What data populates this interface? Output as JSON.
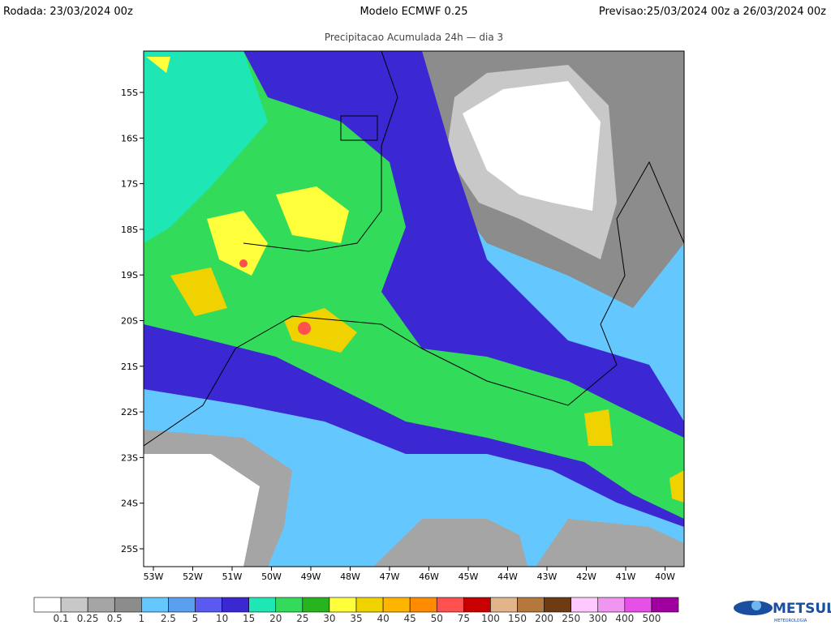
{
  "header": {
    "run": "Rodada: 23/03/2024 00z",
    "model": "Modelo ECMWF 0.25",
    "forecast": "Previsao:25/03/2024 00z a 26/03/2024 00z",
    "subtitle": "Precipitacao Acumulada 24h — dia 3"
  },
  "map": {
    "lat_labels": [
      "15S",
      "16S",
      "17S",
      "18S",
      "19S",
      "20S",
      "21S",
      "22S",
      "23S",
      "24S",
      "25S"
    ],
    "lon_labels": [
      "53W",
      "52W",
      "51W",
      "50W",
      "49W",
      "48W",
      "47W",
      "46W",
      "45W",
      "44W",
      "43W",
      "42W",
      "41W",
      "40W"
    ]
  },
  "colorbar": {
    "colors": [
      "#ffffff",
      "#c8c8c8",
      "#a5a5a5",
      "#8c8c8c",
      "#64c8ff",
      "#5aa0f0",
      "#5a5af0",
      "#3c28d2",
      "#1ee6b4",
      "#32dc5a",
      "#28b41e",
      "#ffff3c",
      "#f0d200",
      "#ffb400",
      "#ff8c00",
      "#ff5050",
      "#c80000",
      "#e1b48c",
      "#b4783c",
      "#6e3c14",
      "#ffc8ff",
      "#f096f0",
      "#e650e6",
      "#a000a0"
    ],
    "labels": [
      "0.1",
      "0.25",
      "0.5",
      "1",
      "2.5",
      "5",
      "10",
      "15",
      "20",
      "25",
      "30",
      "35",
      "40",
      "45",
      "50",
      "75",
      "100",
      "150",
      "200",
      "250",
      "300",
      "400",
      "500"
    ]
  },
  "logo": {
    "name": "METSUL",
    "tagline": "METEOROLOGIA"
  }
}
